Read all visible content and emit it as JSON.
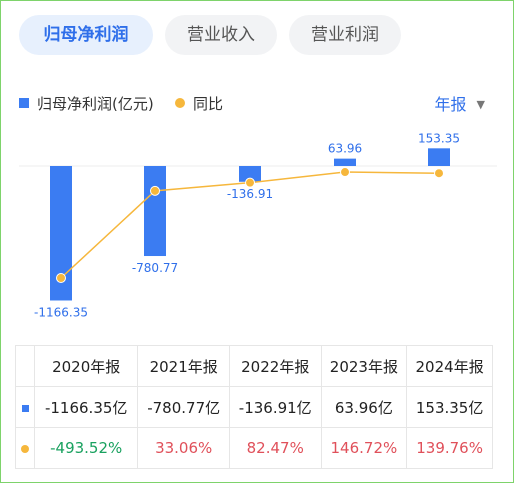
{
  "tabs": [
    {
      "label": "归母净利润",
      "active": true
    },
    {
      "label": "营业收入",
      "active": false
    },
    {
      "label": "营业利润",
      "active": false
    }
  ],
  "legend": {
    "bar_label": "归母净利润(亿元)",
    "line_label": "同比"
  },
  "period_selector": {
    "label": "年报",
    "icon": "caret-down-icon"
  },
  "colors": {
    "bar": "#3b7cf2",
    "line": "#f6b73c",
    "accent": "#2f6fea",
    "negative": "#19a15f",
    "positive": "#e0505a"
  },
  "chart_data": {
    "type": "bar",
    "categories": [
      "2020年报",
      "2021年报",
      "2022年报",
      "2023年报",
      "2024年报"
    ],
    "series": [
      {
        "name": "归母净利润(亿元)",
        "type": "bar",
        "values": [
          -1166.35,
          -780.77,
          -136.91,
          63.96,
          153.35
        ]
      },
      {
        "name": "同比",
        "type": "line",
        "unit": "%",
        "values": [
          -493.52,
          33.06,
          82.47,
          146.72,
          139.76
        ]
      }
    ],
    "data_labels": [
      "-1166.35",
      "-780.77",
      "-136.91",
      "63.96",
      "153.35"
    ]
  },
  "table": {
    "headers": [
      "2020年报",
      "2021年报",
      "2022年报",
      "2023年报",
      "2024年报"
    ],
    "profit_row": [
      "-1166.35亿",
      "-780.77亿",
      "-136.91亿",
      "63.96亿",
      "153.35亿"
    ],
    "yoy_row": [
      "-493.52%",
      "33.06%",
      "82.47%",
      "146.72%",
      "139.76%"
    ]
  }
}
